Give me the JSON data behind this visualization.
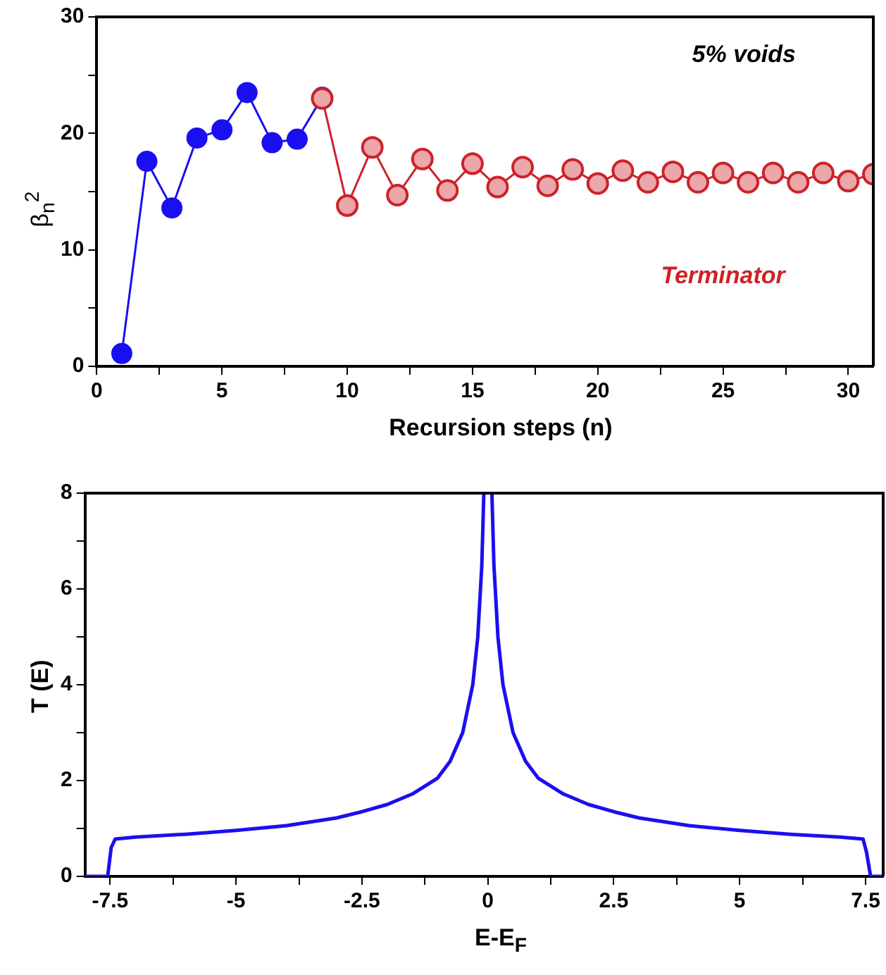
{
  "chart_data": [
    {
      "type": "line",
      "xlabel": "Recursion steps (n)",
      "ylabel": "β$_{n}$$^{2}$",
      "annotations": [
        "5% voids"
      ],
      "xlim": [
        0,
        31
      ],
      "ylim": [
        0,
        30
      ],
      "xticks": [
        0,
        {
          "value": 2.5,
          "label": null
        },
        5,
        {
          "value": 7.5,
          "label": null
        },
        10,
        {
          "value": 12.5,
          "label": null
        },
        15,
        {
          "value": 17.5,
          "label": null
        },
        20,
        {
          "value": 22.5,
          "label": null
        },
        25,
        {
          "value": 27.5,
          "label": null
        },
        30
      ],
      "yticks": [
        0,
        {
          "value": 5,
          "label": null
        },
        10,
        {
          "value": 15,
          "label": null
        },
        20,
        {
          "value": 25,
          "label": null
        },
        30
      ],
      "marker": "circle",
      "legend": false,
      "grid": false,
      "series": [
        {
          "color": "#1a0ff0",
          "x": [
            1,
            2,
            3,
            4,
            5,
            6,
            7,
            8,
            9
          ],
          "values": [
            1.1,
            17.6,
            13.6,
            19.6,
            20.3,
            23.5,
            19.2,
            19.5,
            23.1
          ]
        },
        {
          "name": "Terminator",
          "color": "#cc2229",
          "x": [
            9,
            10,
            11,
            12,
            13,
            14,
            15,
            16,
            17,
            18,
            19,
            20,
            21,
            22,
            23,
            24,
            25,
            26,
            27,
            28,
            29,
            30,
            31
          ],
          "values": [
            23.0,
            13.8,
            18.8,
            14.7,
            17.8,
            15.1,
            17.4,
            15.4,
            17.1,
            15.5,
            16.9,
            15.7,
            16.8,
            15.8,
            16.7,
            15.8,
            16.6,
            15.8,
            16.6,
            15.8,
            16.6,
            15.9,
            16.5
          ]
        }
      ]
    },
    {
      "type": "line",
      "xlabel": "E-E$_{F}$",
      "ylabel": "T (E)",
      "xlim": [
        -8,
        7.85
      ],
      "ylim": [
        0,
        8
      ],
      "xticks": [
        -7.5,
        {
          "value": -6.25,
          "label": null
        },
        -5,
        {
          "value": -3.75,
          "label": null
        },
        -2.5,
        {
          "value": -1.25,
          "label": null
        },
        0,
        {
          "value": 1.25,
          "label": null
        },
        2.5,
        {
          "value": 3.75,
          "label": null
        },
        5,
        {
          "value": 6.25,
          "label": null
        },
        7.5
      ],
      "yticks": [
        0,
        {
          "value": 1,
          "label": null
        },
        2,
        {
          "value": 3,
          "label": null
        },
        4,
        {
          "value": 5,
          "label": null
        },
        6,
        {
          "value": 7,
          "label": null
        },
        8
      ],
      "marker": "none",
      "legend": false,
      "grid": false,
      "series": [
        {
          "color": "#1a0ff0",
          "x": [
            -8,
            -7.55,
            -7.48,
            -7.4,
            -7,
            -6,
            -5,
            -4,
            -3,
            -2.5,
            -2,
            -1.5,
            -1,
            -0.75,
            -0.5,
            -0.3,
            -0.2,
            -0.12,
            -0.08,
            0,
            0.08,
            0.12,
            0.2,
            0.3,
            0.5,
            0.75,
            1,
            1.5,
            2,
            2.5,
            3,
            4,
            5,
            6,
            7,
            7.45,
            7.52,
            7.6,
            7.85
          ],
          "values": [
            0,
            0,
            0.6,
            0.78,
            0.82,
            0.88,
            0.96,
            1.06,
            1.22,
            1.35,
            1.5,
            1.72,
            2.05,
            2.4,
            3.0,
            4.0,
            5.0,
            6.5,
            8,
            null,
            8,
            6.5,
            5.0,
            4.0,
            3.0,
            2.4,
            2.05,
            1.72,
            1.5,
            1.35,
            1.22,
            1.06,
            0.96,
            0.88,
            0.82,
            0.78,
            0.5,
            0,
            0
          ]
        }
      ]
    }
  ]
}
